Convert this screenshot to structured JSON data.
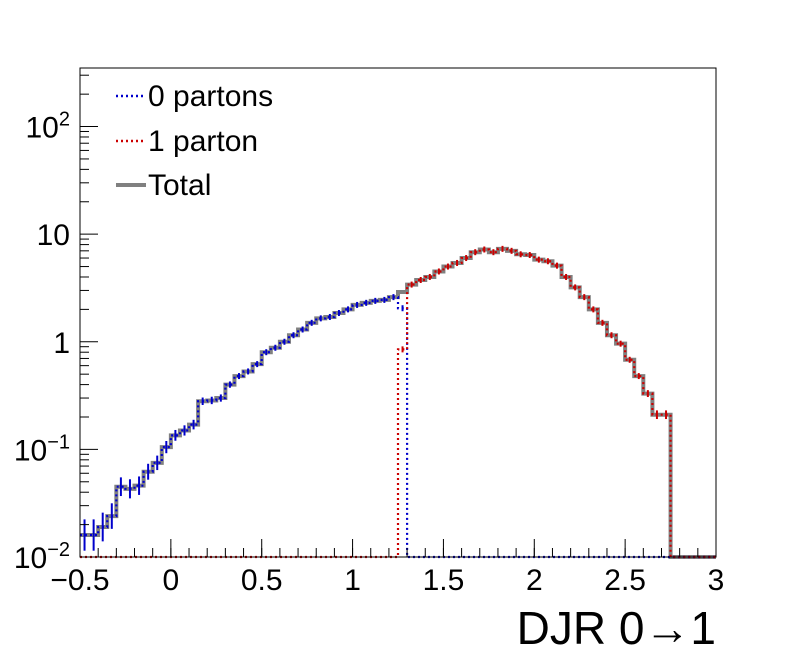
{
  "chart_data": {
    "type": "line",
    "xlabel": "DJR 0→1",
    "ylabel": "",
    "xlim": [
      -0.5,
      3.0
    ],
    "ylim": [
      0.01,
      350
    ],
    "yscale": "log",
    "grid": false,
    "legend_position": "top-left",
    "x_ticks": [
      {
        "value": -0.5,
        "label": "−0.5"
      },
      {
        "value": 0,
        "label": "0"
      },
      {
        "value": 0.5,
        "label": "0.5"
      },
      {
        "value": 1,
        "label": "1"
      },
      {
        "value": 1.5,
        "label": "1.5"
      },
      {
        "value": 2,
        "label": "2"
      },
      {
        "value": 2.5,
        "label": "2.5"
      },
      {
        "value": 3,
        "label": "3"
      }
    ],
    "y_ticks": [
      {
        "value": 0.01,
        "base": "10",
        "exp": "−2"
      },
      {
        "value": 0.1,
        "base": "10",
        "exp": "−1"
      },
      {
        "value": 1,
        "base": "1",
        "exp": ""
      },
      {
        "value": 10,
        "base": "10",
        "exp": ""
      },
      {
        "value": 100,
        "base": "10",
        "exp": "2"
      }
    ],
    "bin_edges_range": [
      -0.5,
      3.0
    ],
    "bin_width": 0.05,
    "series": [
      {
        "name": "0 partons",
        "color": "#0000cc",
        "style": "dotted",
        "values": [
          0.016,
          0.016,
          0.019,
          0.024,
          0.045,
          0.043,
          0.046,
          0.062,
          0.075,
          0.105,
          0.135,
          0.15,
          0.17,
          0.28,
          0.285,
          0.3,
          0.4,
          0.48,
          0.53,
          0.62,
          0.8,
          0.88,
          1.0,
          1.15,
          1.3,
          1.5,
          1.65,
          1.7,
          1.85,
          2.0,
          2.2,
          2.3,
          2.4,
          2.45,
          2.6,
          2.05,
          0.01,
          0.01,
          0.01,
          0.01,
          0.01,
          0.01,
          0.01,
          0.01,
          0.01,
          0.01,
          0.01,
          0.01,
          0.01,
          0.01,
          0.01,
          0.01,
          0.01,
          0.01,
          0.01,
          0.01,
          0.01,
          0.01,
          0.01,
          0.01,
          0.01,
          0.01,
          0.01,
          0.01,
          0.01,
          0.01,
          0.01,
          0.01,
          0.01,
          0.01
        ]
      },
      {
        "name": "1 parton",
        "color": "#cc0000",
        "style": "dotted",
        "values": [
          0.01,
          0.01,
          0.01,
          0.01,
          0.01,
          0.01,
          0.01,
          0.01,
          0.01,
          0.01,
          0.01,
          0.01,
          0.01,
          0.01,
          0.01,
          0.01,
          0.01,
          0.01,
          0.01,
          0.01,
          0.01,
          0.01,
          0.01,
          0.01,
          0.01,
          0.01,
          0.01,
          0.01,
          0.01,
          0.01,
          0.01,
          0.01,
          0.01,
          0.01,
          0.01,
          0.85,
          3.4,
          3.75,
          4.0,
          4.5,
          5.0,
          5.4,
          6.0,
          6.8,
          7.2,
          6.8,
          7.3,
          7.0,
          6.5,
          6.4,
          5.8,
          5.6,
          5.1,
          4.0,
          3.2,
          2.6,
          2.0,
          1.5,
          1.15,
          0.96,
          0.68,
          0.48,
          0.33,
          0.21,
          0.21,
          0.01,
          0.01,
          0.01,
          0.01,
          0.01
        ]
      },
      {
        "name": "Total",
        "color": "#808080",
        "style": "solid",
        "values": [
          0.016,
          0.016,
          0.019,
          0.024,
          0.045,
          0.043,
          0.046,
          0.062,
          0.075,
          0.105,
          0.135,
          0.15,
          0.17,
          0.28,
          0.285,
          0.3,
          0.4,
          0.48,
          0.53,
          0.62,
          0.8,
          0.88,
          1.0,
          1.15,
          1.3,
          1.5,
          1.65,
          1.7,
          1.85,
          2.0,
          2.2,
          2.3,
          2.4,
          2.45,
          2.6,
          2.9,
          3.4,
          3.75,
          4.0,
          4.5,
          5.0,
          5.4,
          6.0,
          6.8,
          7.2,
          6.8,
          7.3,
          7.0,
          6.5,
          6.4,
          5.8,
          5.6,
          5.1,
          4.0,
          3.2,
          2.6,
          2.0,
          1.5,
          1.15,
          0.96,
          0.68,
          0.48,
          0.33,
          0.21,
          0.21,
          0.01,
          0.01,
          0.01,
          0.01,
          0.01
        ]
      }
    ]
  }
}
